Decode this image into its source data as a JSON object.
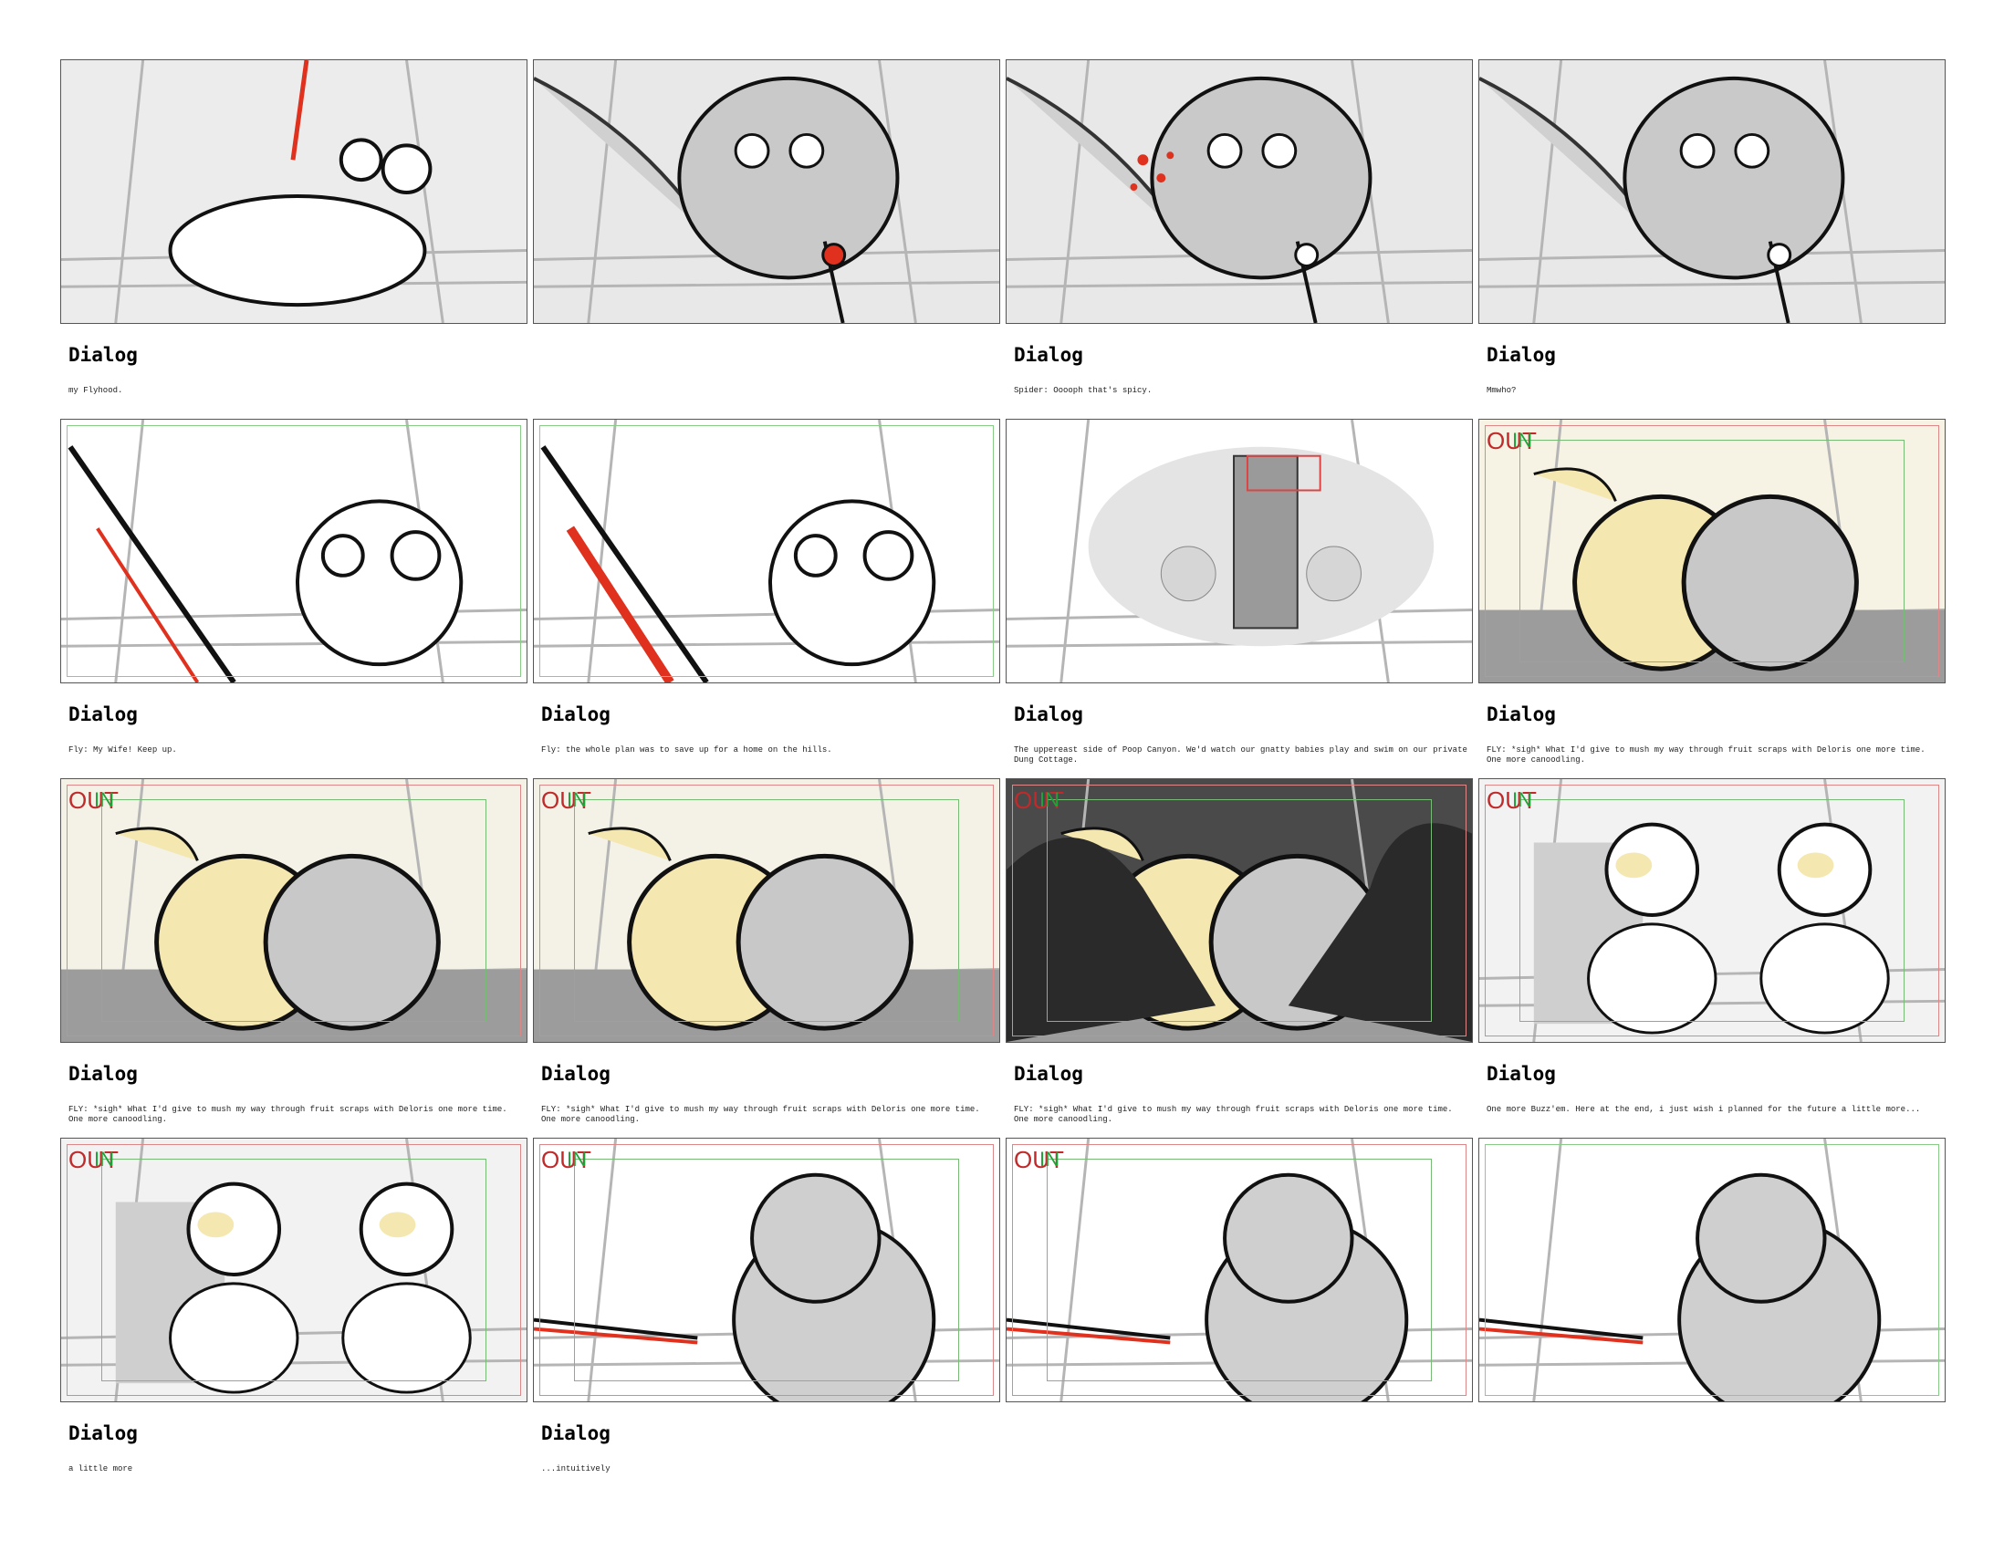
{
  "sheet": {
    "panels": [
      {
        "row": 1,
        "col": 1,
        "label": "Dialog",
        "text": " my Flyhood.",
        "outin": false,
        "bg": "#ececec"
      },
      {
        "row": 1,
        "col": 2,
        "label": "",
        "text": "",
        "outin": false,
        "bg": "#e8e8e8"
      },
      {
        "row": 1,
        "col": 3,
        "label": "Dialog",
        "text": "Spider: Ooooph that's spicy.",
        "outin": false,
        "bg": "#e8e8e8"
      },
      {
        "row": 1,
        "col": 4,
        "label": "Dialog",
        "text": "Mmwho?",
        "outin": false,
        "bg": "#e8e8e8"
      },
      {
        "row": 2,
        "col": 1,
        "label": "Dialog",
        "text": "Fly: My Wife! Keep up.",
        "outin": false,
        "bg": "#ffffff"
      },
      {
        "row": 2,
        "col": 2,
        "label": "Dialog",
        "text": "Fly: the whole plan was to save up for a home on the hills.",
        "outin": false,
        "bg": "#ffffff"
      },
      {
        "row": 2,
        "col": 3,
        "label": "Dialog",
        "text": "The uppereast side of Poop Canyon. We'd watch our gnatty babies play and swim on our private Dung Cottage.",
        "outin": false,
        "bg": "#ffffff"
      },
      {
        "row": 2,
        "col": 4,
        "label": "Dialog",
        "text": "FLY: *sigh* What I'd give to mush my way through fruit scraps with Deloris one more time. One more canoodling.",
        "outin": true,
        "bg": "#f6f2e4"
      },
      {
        "row": 3,
        "col": 1,
        "label": "Dialog",
        "text": "FLY: *sigh* What I'd give to mush my way through fruit scraps with Deloris one more time. One more canoodling.",
        "outin": true,
        "bg": "#f4f1e6"
      },
      {
        "row": 3,
        "col": 2,
        "label": "Dialog",
        "text": "FLY: *sigh* What I'd give to mush my way through fruit scraps with Deloris one more time. One more canoodling.",
        "outin": true,
        "bg": "#f4f1e6"
      },
      {
        "row": 3,
        "col": 3,
        "label": "Dialog",
        "text": "FLY: *sigh* What I'd give to mush my way through fruit scraps with Deloris one more time. One more canoodling.",
        "outin": true,
        "bg": "#4a4a4a"
      },
      {
        "row": 3,
        "col": 4,
        "label": "Dialog",
        "text": "One more Buzz'em. Here at the end, i just wish i planned for the future a little more...",
        "outin": true,
        "bg": "#f2f2f2"
      },
      {
        "row": 4,
        "col": 1,
        "label": "Dialog",
        "text": "a little more",
        "outin": true,
        "bg": "#f2f2f2"
      },
      {
        "row": 4,
        "col": 2,
        "label": "Dialog",
        "text": "...intuitively",
        "outin": true,
        "bg": "#ffffff"
      },
      {
        "row": 4,
        "col": 3,
        "label": "",
        "text": "",
        "outin": true,
        "bg": "#ffffff"
      },
      {
        "row": 4,
        "col": 4,
        "label": "",
        "text": "",
        "outin": false,
        "bg": "#ffffff"
      }
    ],
    "outin_marks": {
      "out": "OUT",
      "in": "IN"
    },
    "colors": {
      "blood_red": "#e0301e",
      "sketch_gray": "#cfcfcf",
      "fruit_yellow": "#f5e7b0",
      "out_red": "#c02a2a",
      "in_green": "#1fa23a"
    }
  }
}
